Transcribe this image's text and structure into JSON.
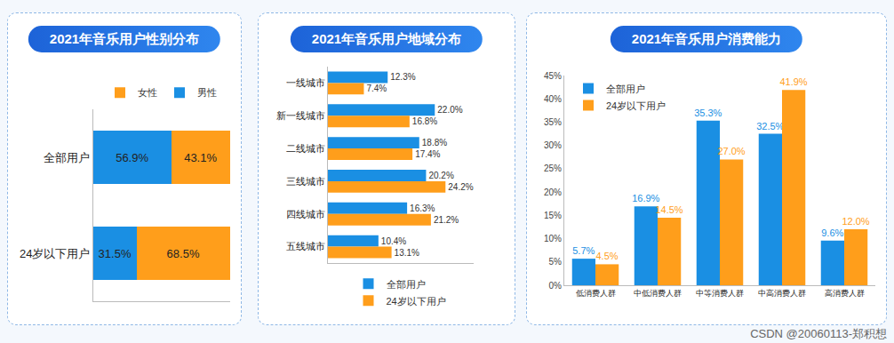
{
  "chart_data": [
    {
      "type": "bar",
      "title": "2021年音乐用户性别分布",
      "orientation": "horizontal",
      "stacked": true,
      "categories": [
        "全部用户",
        "24岁以下用户"
      ],
      "series": [
        {
          "name": "男性",
          "color": "#1a8fe3",
          "values": [
            56.9,
            31.5
          ],
          "value_labels": [
            "56.9%",
            "31.5%"
          ]
        },
        {
          "name": "女性",
          "color": "#ff9e1b",
          "values": [
            43.1,
            68.5
          ],
          "value_labels": [
            "43.1%",
            "68.5%"
          ]
        }
      ],
      "xlim": [
        0,
        100
      ],
      "data_labels": true,
      "tick_labels": "y",
      "legend": "top",
      "grid": false
    },
    {
      "type": "bar",
      "title": "2021年音乐用户地域分布",
      "orientation": "horizontal",
      "stacked": false,
      "categories": [
        "一线城市",
        "新一线城市",
        "二线城市",
        "三线城市",
        "四线城市",
        "五线城市"
      ],
      "series": [
        {
          "name": "全部用户",
          "color": "#1a8fe3",
          "values": [
            12.3,
            22.0,
            18.8,
            20.2,
            16.3,
            10.4
          ],
          "value_labels": [
            "12.3%",
            "22.0%",
            "18.8%",
            "20.2%",
            "16.3%",
            "10.4%"
          ]
        },
        {
          "name": "24岁以下用户",
          "color": "#ff9e1b",
          "values": [
            7.4,
            16.8,
            17.4,
            24.2,
            21.2,
            13.1
          ],
          "value_labels": [
            "7.4%",
            "16.8%",
            "17.4%",
            "24.2%",
            "21.2%",
            "13.1%"
          ]
        }
      ],
      "xlim": [
        0,
        30
      ],
      "data_labels": true,
      "tick_labels": "y",
      "legend": "bottom",
      "grid": false
    },
    {
      "type": "bar",
      "title": "2021年音乐用户消费能力",
      "stacked": false,
      "categories": [
        "低消费人群",
        "中低消费人群",
        "中等消费人群",
        "中高消费人群",
        "高消费人群"
      ],
      "series": [
        {
          "name": "全部用户",
          "color": "#1a8fe3",
          "values": [
            5.7,
            16.9,
            35.3,
            32.5,
            9.6
          ],
          "value_labels": [
            "5.7%",
            "16.9%",
            "35.3%",
            "32.5%",
            "9.6%"
          ]
        },
        {
          "name": "24岁以下用户",
          "color": "#ff9e1b",
          "values": [
            4.5,
            14.5,
            27.0,
            41.9,
            12.0
          ],
          "value_labels": [
            "4.5%",
            "14.5%",
            "27.0%",
            "41.9%",
            "12.0%"
          ]
        }
      ],
      "ylim": [
        0,
        45
      ],
      "yticks": [
        {
          "value": 0,
          "label": "0%"
        },
        {
          "value": 5,
          "label": "5%"
        },
        {
          "value": 10,
          "label": "10%"
        },
        {
          "value": 15,
          "label": "15%"
        },
        {
          "value": 20,
          "label": "20%"
        },
        {
          "value": 25,
          "label": "25%"
        },
        {
          "value": 30,
          "label": "30%"
        },
        {
          "value": 35,
          "label": "35%"
        },
        {
          "value": 40,
          "label": "40%"
        },
        {
          "value": 45,
          "label": "45%"
        }
      ],
      "data_labels": true,
      "legend": "top left",
      "grid": false,
      "annotations": [
        "CSDN @20060113-郑积想"
      ]
    }
  ]
}
